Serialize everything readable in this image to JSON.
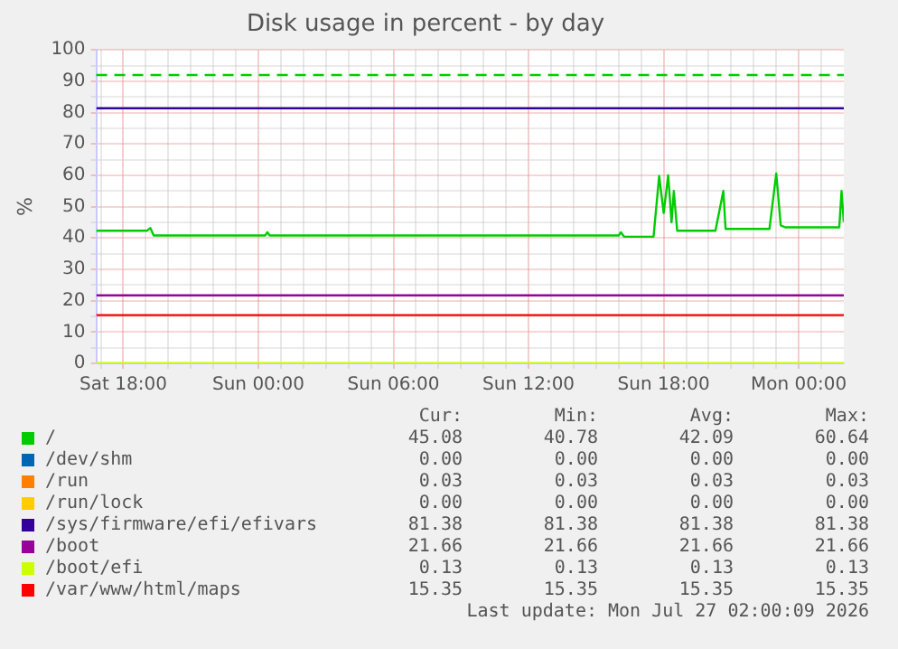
{
  "chart_data": {
    "type": "line",
    "title": "Disk usage in percent - by day",
    "ylabel": "%",
    "xlim": [
      "2026-07-25T16:48",
      "2026-07-27T02:00"
    ],
    "ylim": [
      0,
      100
    ],
    "xticks": [
      {
        "value": "2026-07-25T17:00",
        "label": null
      },
      {
        "value": "2026-07-25T18:00",
        "label": "Sat 18:00"
      },
      {
        "value": "2026-07-25T19:00",
        "label": null
      },
      {
        "value": "2026-07-25T20:00",
        "label": null
      },
      {
        "value": "2026-07-25T21:00",
        "label": null
      },
      {
        "value": "2026-07-25T22:00",
        "label": null
      },
      {
        "value": "2026-07-25T23:00",
        "label": null
      },
      {
        "value": "2026-07-26T00:00",
        "label": "Sun 00:00"
      },
      {
        "value": "2026-07-26T01:00",
        "label": null
      },
      {
        "value": "2026-07-26T02:00",
        "label": null
      },
      {
        "value": "2026-07-26T03:00",
        "label": null
      },
      {
        "value": "2026-07-26T04:00",
        "label": null
      },
      {
        "value": "2026-07-26T05:00",
        "label": null
      },
      {
        "value": "2026-07-26T06:00",
        "label": "Sun 06:00"
      },
      {
        "value": "2026-07-26T07:00",
        "label": null
      },
      {
        "value": "2026-07-26T08:00",
        "label": null
      },
      {
        "value": "2026-07-26T09:00",
        "label": null
      },
      {
        "value": "2026-07-26T10:00",
        "label": null
      },
      {
        "value": "2026-07-26T11:00",
        "label": null
      },
      {
        "value": "2026-07-26T12:00",
        "label": "Sun 12:00"
      },
      {
        "value": "2026-07-26T13:00",
        "label": null
      },
      {
        "value": "2026-07-26T14:00",
        "label": null
      },
      {
        "value": "2026-07-26T15:00",
        "label": null
      },
      {
        "value": "2026-07-26T16:00",
        "label": null
      },
      {
        "value": "2026-07-26T17:00",
        "label": null
      },
      {
        "value": "2026-07-26T18:00",
        "label": "Sun 18:00"
      },
      {
        "value": "2026-07-26T19:00",
        "label": null
      },
      {
        "value": "2026-07-26T20:00",
        "label": null
      },
      {
        "value": "2026-07-26T21:00",
        "label": null
      },
      {
        "value": "2026-07-26T22:00",
        "label": null
      },
      {
        "value": "2026-07-26T23:00",
        "label": null
      },
      {
        "value": "2026-07-27T00:00",
        "label": "Mon 00:00"
      },
      {
        "value": "2026-07-27T01:00",
        "label": null
      }
    ],
    "yticks": [
      0,
      {
        "value": 5,
        "label": null
      },
      10,
      {
        "value": 15,
        "label": null
      },
      20,
      {
        "value": 25,
        "label": null
      },
      30,
      {
        "value": 35,
        "label": null
      },
      40,
      {
        "value": 45,
        "label": null
      },
      50,
      {
        "value": 55,
        "label": null
      },
      60,
      {
        "value": 65,
        "label": null
      },
      70,
      {
        "value": 75,
        "label": null
      },
      80,
      {
        "value": 85,
        "label": null
      },
      90,
      {
        "value": 95,
        "label": null
      },
      100
    ],
    "grid": true,
    "legend": "bottom",
    "ref_lines": [
      {
        "axis": "y",
        "value": 92,
        "color": "#00cc00",
        "line_style": "dashed"
      }
    ],
    "series": [
      {
        "name": "/",
        "color": "#00cc00",
        "x": [
          "2026-07-25T16:48",
          "2026-07-25T19:03",
          "2026-07-25T19:12",
          "2026-07-25T19:21",
          "2026-07-26T00:18",
          "2026-07-26T00:24",
          "2026-07-26T00:30",
          "2026-07-26T16:00",
          "2026-07-26T16:06",
          "2026-07-26T16:15",
          "2026-07-26T17:33",
          "2026-07-26T17:48",
          "2026-07-26T18:00",
          "2026-07-26T18:12",
          "2026-07-26T18:21",
          "2026-07-26T18:27",
          "2026-07-26T18:36",
          "2026-07-26T20:18",
          "2026-07-26T20:39",
          "2026-07-26T20:45",
          "2026-07-26T22:42",
          "2026-07-26T23:00",
          "2026-07-26T23:12",
          "2026-07-26T23:24",
          "2026-07-27T01:48",
          "2026-07-27T01:54",
          "2026-07-27T02:00"
        ],
        "values": [
          42.3,
          42.3,
          43.2,
          40.8,
          40.8,
          41.8,
          40.8,
          40.8,
          41.8,
          40.4,
          40.4,
          59.8,
          48,
          60,
          45,
          55,
          42.3,
          42.3,
          55,
          42.9,
          42.9,
          60.6,
          44,
          43.4,
          43.4,
          55,
          45.1
        ]
      },
      {
        "name": "/dev/shm",
        "color": "#0066b3",
        "values": [
          null
        ]
      },
      {
        "name": "/run",
        "color": "#ff8000",
        "values": [
          null
        ]
      },
      {
        "name": "/run/lock",
        "color": "#ffcc00",
        "values": [
          null
        ]
      },
      {
        "name": "/sys/firmware/efi/efivars",
        "color": "#330099",
        "x": [
          "2026-07-25T16:48",
          "2026-07-27T02:00"
        ],
        "values": [
          81.4,
          81.4
        ]
      },
      {
        "name": "/boot",
        "color": "#990099",
        "x": [
          "2026-07-25T16:48",
          "2026-07-27T02:00"
        ],
        "values": [
          21.7,
          21.7
        ]
      },
      {
        "name": "/boot/efi",
        "color": "#ccff00",
        "x": [
          "2026-07-25T16:48",
          "2026-07-27T02:00"
        ],
        "values": [
          0.1,
          0.1
        ]
      },
      {
        "name": "/var/www/html/maps",
        "color": "#ff0000",
        "x": [
          "2026-07-25T16:48",
          "2026-07-27T02:00"
        ],
        "values": [
          15.4,
          15.4
        ]
      }
    ],
    "annotations": [
      "Cur:",
      "Min:",
      "Avg:",
      "Max:",
      "45.08",
      "40.78",
      "42.09",
      "60.64",
      "0.00",
      "0.00",
      "0.00",
      "0.00",
      "0.03",
      "0.03",
      "0.03",
      "0.03",
      "0.00",
      "0.00",
      "0.00",
      "0.00",
      "81.38",
      "81.38",
      "81.38",
      "81.38",
      "21.66",
      "21.66",
      "21.66",
      "21.66",
      "0.13",
      "0.13",
      "0.13",
      "0.13",
      "15.35",
      "15.35",
      "15.35",
      "15.35",
      "Last update: Mon Jul 27 02:00:09 2026"
    ]
  }
}
